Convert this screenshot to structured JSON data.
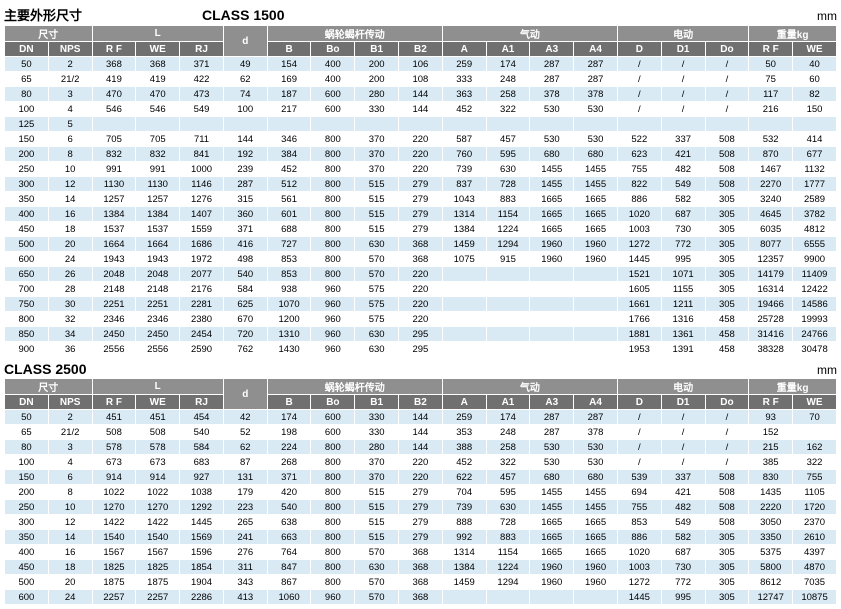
{
  "labels": {
    "main_title": "主要外形尺寸",
    "mm": "mm",
    "size": "尺寸",
    "L": "L",
    "d": "d",
    "worm": "蜗轮蝎杆传动",
    "pneumatic": "气动",
    "electric": "电动",
    "weight": "重量kg",
    "DN": "DN",
    "NPS": "NPS",
    "RF": "R F",
    "WE": "WE",
    "RJ": "RJ",
    "B": "B",
    "Bo": "Bo",
    "B1": "B1",
    "B2": "B2",
    "A": "A",
    "A1": "A1",
    "A3": "A3",
    "A4": "A4",
    "D": "D",
    "D1": "D1",
    "Do": "Do"
  },
  "class1": {
    "title": "CLASS 1500"
  },
  "class2": {
    "title": "CLASS 2500"
  },
  "rows1": [
    [
      "50",
      "2",
      "368",
      "368",
      "371",
      "49",
      "154",
      "400",
      "200",
      "106",
      "259",
      "174",
      "287",
      "287",
      "/",
      "/",
      "/",
      "50",
      "40"
    ],
    [
      "65",
      "21/2",
      "419",
      "419",
      "422",
      "62",
      "169",
      "400",
      "200",
      "108",
      "333",
      "248",
      "287",
      "287",
      "/",
      "/",
      "/",
      "75",
      "60"
    ],
    [
      "80",
      "3",
      "470",
      "470",
      "473",
      "74",
      "187",
      "600",
      "280",
      "144",
      "363",
      "258",
      "378",
      "378",
      "/",
      "/",
      "/",
      "117",
      "82"
    ],
    [
      "100",
      "4",
      "546",
      "546",
      "549",
      "100",
      "217",
      "600",
      "330",
      "144",
      "452",
      "322",
      "530",
      "530",
      "/",
      "/",
      "/",
      "216",
      "150"
    ],
    [
      "125",
      "5",
      "",
      "",
      "",
      "",
      "",
      "",
      "",
      "",
      "",
      "",
      "",
      "",
      "",
      "",
      "",
      "",
      ""
    ],
    [
      "150",
      "6",
      "705",
      "705",
      "711",
      "144",
      "346",
      "800",
      "370",
      "220",
      "587",
      "457",
      "530",
      "530",
      "522",
      "337",
      "508",
      "532",
      "414"
    ],
    [
      "200",
      "8",
      "832",
      "832",
      "841",
      "192",
      "384",
      "800",
      "370",
      "220",
      "760",
      "595",
      "680",
      "680",
      "623",
      "421",
      "508",
      "870",
      "677"
    ],
    [
      "250",
      "10",
      "991",
      "991",
      "1000",
      "239",
      "452",
      "800",
      "370",
      "220",
      "739",
      "630",
      "1455",
      "1455",
      "755",
      "482",
      "508",
      "1467",
      "1132"
    ],
    [
      "300",
      "12",
      "1130",
      "1130",
      "1146",
      "287",
      "512",
      "800",
      "515",
      "279",
      "837",
      "728",
      "1455",
      "1455",
      "822",
      "549",
      "508",
      "2270",
      "1777"
    ],
    [
      "350",
      "14",
      "1257",
      "1257",
      "1276",
      "315",
      "561",
      "800",
      "515",
      "279",
      "1043",
      "883",
      "1665",
      "1665",
      "886",
      "582",
      "305",
      "3240",
      "2589"
    ],
    [
      "400",
      "16",
      "1384",
      "1384",
      "1407",
      "360",
      "601",
      "800",
      "515",
      "279",
      "1314",
      "1154",
      "1665",
      "1665",
      "1020",
      "687",
      "305",
      "4645",
      "3782"
    ],
    [
      "450",
      "18",
      "1537",
      "1537",
      "1559",
      "371",
      "688",
      "800",
      "515",
      "279",
      "1384",
      "1224",
      "1665",
      "1665",
      "1003",
      "730",
      "305",
      "6035",
      "4812"
    ],
    [
      "500",
      "20",
      "1664",
      "1664",
      "1686",
      "416",
      "727",
      "800",
      "630",
      "368",
      "1459",
      "1294",
      "1960",
      "1960",
      "1272",
      "772",
      "305",
      "8077",
      "6555"
    ],
    [
      "600",
      "24",
      "1943",
      "1943",
      "1972",
      "498",
      "853",
      "800",
      "570",
      "368",
      "1075",
      "915",
      "1960",
      "1960",
      "1445",
      "995",
      "305",
      "12357",
      "9900"
    ],
    [
      "650",
      "26",
      "2048",
      "2048",
      "2077",
      "540",
      "853",
      "800",
      "570",
      "220",
      "",
      "",
      "",
      "",
      "1521",
      "1071",
      "305",
      "14179",
      "11409"
    ],
    [
      "700",
      "28",
      "2148",
      "2148",
      "2176",
      "584",
      "938",
      "960",
      "575",
      "220",
      "",
      "",
      "",
      "",
      "1605",
      "1155",
      "305",
      "16314",
      "12422"
    ],
    [
      "750",
      "30",
      "2251",
      "2251",
      "2281",
      "625",
      "1070",
      "960",
      "575",
      "220",
      "",
      "",
      "",
      "",
      "1661",
      "1211",
      "305",
      "19466",
      "14586"
    ],
    [
      "800",
      "32",
      "2346",
      "2346",
      "2380",
      "670",
      "1200",
      "960",
      "575",
      "220",
      "",
      "",
      "",
      "",
      "1766",
      "1316",
      "458",
      "25728",
      "19993"
    ],
    [
      "850",
      "34",
      "2450",
      "2450",
      "2454",
      "720",
      "1310",
      "960",
      "630",
      "295",
      "",
      "",
      "",
      "",
      "1881",
      "1361",
      "458",
      "31416",
      "24766"
    ],
    [
      "900",
      "36",
      "2556",
      "2556",
      "2590",
      "762",
      "1430",
      "960",
      "630",
      "295",
      "",
      "",
      "",
      "",
      "1953",
      "1391",
      "458",
      "38328",
      "30478"
    ]
  ],
  "rows2": [
    [
      "50",
      "2",
      "451",
      "451",
      "454",
      "42",
      "174",
      "600",
      "330",
      "144",
      "259",
      "174",
      "287",
      "287",
      "/",
      "/",
      "/",
      "93",
      "70"
    ],
    [
      "65",
      "21/2",
      "508",
      "508",
      "540",
      "52",
      "198",
      "600",
      "330",
      "144",
      "353",
      "248",
      "287",
      "378",
      "/",
      "/",
      "/",
      "152",
      ""
    ],
    [
      "80",
      "3",
      "578",
      "578",
      "584",
      "62",
      "224",
      "800",
      "280",
      "144",
      "388",
      "258",
      "530",
      "530",
      "/",
      "/",
      "/",
      "215",
      "162"
    ],
    [
      "100",
      "4",
      "673",
      "673",
      "683",
      "87",
      "268",
      "800",
      "370",
      "220",
      "452",
      "322",
      "530",
      "530",
      "/",
      "/",
      "/",
      "385",
      "322"
    ],
    [
      "150",
      "6",
      "914",
      "914",
      "927",
      "131",
      "371",
      "800",
      "370",
      "220",
      "622",
      "457",
      "680",
      "680",
      "539",
      "337",
      "508",
      "830",
      "755"
    ],
    [
      "200",
      "8",
      "1022",
      "1022",
      "1038",
      "179",
      "420",
      "800",
      "515",
      "279",
      "704",
      "595",
      "1455",
      "1455",
      "694",
      "421",
      "508",
      "1435",
      "1105"
    ],
    [
      "250",
      "10",
      "1270",
      "1270",
      "1292",
      "223",
      "540",
      "800",
      "515",
      "279",
      "739",
      "630",
      "1455",
      "1455",
      "755",
      "482",
      "508",
      "2220",
      "1720"
    ],
    [
      "300",
      "12",
      "1422",
      "1422",
      "1445",
      "265",
      "638",
      "800",
      "515",
      "279",
      "888",
      "728",
      "1665",
      "1665",
      "853",
      "549",
      "508",
      "3050",
      "2370"
    ],
    [
      "350",
      "14",
      "1540",
      "1540",
      "1569",
      "241",
      "663",
      "800",
      "515",
      "279",
      "992",
      "883",
      "1665",
      "1665",
      "886",
      "582",
      "305",
      "3350",
      "2610"
    ],
    [
      "400",
      "16",
      "1567",
      "1567",
      "1596",
      "276",
      "764",
      "800",
      "570",
      "368",
      "1314",
      "1154",
      "1665",
      "1665",
      "1020",
      "687",
      "305",
      "5375",
      "4397"
    ],
    [
      "450",
      "18",
      "1825",
      "1825",
      "1854",
      "311",
      "847",
      "800",
      "630",
      "368",
      "1384",
      "1224",
      "1960",
      "1960",
      "1003",
      "730",
      "305",
      "5800",
      "4870"
    ],
    [
      "500",
      "20",
      "1875",
      "1875",
      "1904",
      "343",
      "867",
      "800",
      "570",
      "368",
      "1459",
      "1294",
      "1960",
      "1960",
      "1272",
      "772",
      "305",
      "8612",
      "7035"
    ],
    [
      "600",
      "24",
      "2257",
      "2257",
      "2286",
      "413",
      "1060",
      "960",
      "570",
      "368",
      "",
      "",
      "",
      "",
      "1445",
      "995",
      "305",
      "12747",
      "10875"
    ]
  ]
}
